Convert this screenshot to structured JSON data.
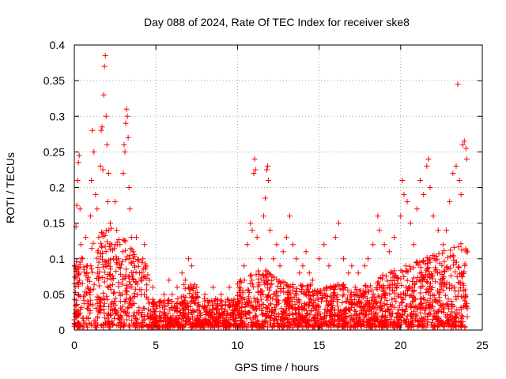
{
  "chart_data": {
    "type": "scatter",
    "title": "Day 088 of 2024, Rate Of TEC Index for receiver ske8",
    "xlabel": "GPS time / hours",
    "ylabel": "ROTI / TECUs",
    "xlim": [
      0,
      25
    ],
    "ylim": [
      0,
      0.4
    ],
    "x_ticks": [
      0,
      5,
      10,
      15,
      20,
      25
    ],
    "y_ticks": [
      0,
      0.05,
      0.1,
      0.15,
      0.2,
      0.25,
      0.3,
      0.35,
      0.4
    ],
    "x_tick_labels": [
      "0",
      "5",
      "10",
      "15",
      "20",
      "25"
    ],
    "y_tick_labels": [
      "0",
      "0.05",
      "0.1",
      "0.15",
      "0.2",
      "0.25",
      "0.3",
      "0.35",
      "0.4"
    ],
    "grid": true,
    "marker": "+",
    "marker_color": "#ff0000",
    "series": [
      {
        "name": "ROTI",
        "points": [
          [
            0.1,
            0.145
          ],
          [
            0.15,
            0.175
          ],
          [
            0.2,
            0.21
          ],
          [
            0.25,
            0.235
          ],
          [
            0.3,
            0.245
          ],
          [
            0.35,
            0.17
          ],
          [
            0.4,
            0.12
          ],
          [
            0.5,
            0.1
          ],
          [
            0.6,
            0.085
          ],
          [
            0.7,
            0.13
          ],
          [
            0.8,
            0.09
          ],
          [
            1.0,
            0.16
          ],
          [
            1.05,
            0.21
          ],
          [
            1.1,
            0.28
          ],
          [
            1.2,
            0.25
          ],
          [
            1.3,
            0.19
          ],
          [
            1.4,
            0.17
          ],
          [
            1.5,
            0.13
          ],
          [
            1.6,
            0.23
          ],
          [
            1.65,
            0.28
          ],
          [
            1.7,
            0.285
          ],
          [
            1.75,
            0.225
          ],
          [
            1.8,
            0.33
          ],
          [
            1.85,
            0.37
          ],
          [
            1.9,
            0.385
          ],
          [
            1.95,
            0.3
          ],
          [
            2.0,
            0.26
          ],
          [
            2.05,
            0.18
          ],
          [
            2.1,
            0.22
          ],
          [
            2.2,
            0.15
          ],
          [
            2.3,
            0.12
          ],
          [
            2.4,
            0.1
          ],
          [
            2.5,
            0.18
          ],
          [
            2.6,
            0.14
          ],
          [
            2.7,
            0.1
          ],
          [
            2.8,
            0.12
          ],
          [
            3.0,
            0.22
          ],
          [
            3.05,
            0.26
          ],
          [
            3.1,
            0.25
          ],
          [
            3.15,
            0.29
          ],
          [
            3.2,
            0.31
          ],
          [
            3.25,
            0.3
          ],
          [
            3.3,
            0.27
          ],
          [
            3.35,
            0.2
          ],
          [
            3.4,
            0.17
          ],
          [
            3.5,
            0.13
          ],
          [
            3.6,
            0.11
          ],
          [
            3.7,
            0.09
          ],
          [
            3.8,
            0.13
          ],
          [
            4.0,
            0.08
          ],
          [
            4.2,
            0.1
          ],
          [
            4.3,
            0.12
          ],
          [
            4.4,
            0.09
          ],
          [
            4.6,
            0.07
          ],
          [
            4.8,
            0.06
          ],
          [
            5.2,
            0.04
          ],
          [
            5.5,
            0.05
          ],
          [
            5.8,
            0.07
          ],
          [
            6.0,
            0.05
          ],
          [
            6.3,
            0.06
          ],
          [
            6.6,
            0.08
          ],
          [
            6.8,
            0.07
          ],
          [
            7.0,
            0.1
          ],
          [
            7.2,
            0.09
          ],
          [
            7.5,
            0.06
          ],
          [
            8.0,
            0.05
          ],
          [
            8.5,
            0.06
          ],
          [
            9.0,
            0.05
          ],
          [
            9.5,
            0.06
          ],
          [
            10.4,
            0.09
          ],
          [
            10.6,
            0.12
          ],
          [
            10.8,
            0.15
          ],
          [
            10.9,
            0.14
          ],
          [
            11.0,
            0.22
          ],
          [
            11.05,
            0.24
          ],
          [
            11.1,
            0.225
          ],
          [
            11.2,
            0.13
          ],
          [
            11.4,
            0.1
          ],
          [
            11.6,
            0.16
          ],
          [
            11.7,
            0.185
          ],
          [
            11.8,
            0.225
          ],
          [
            11.85,
            0.23
          ],
          [
            11.9,
            0.21
          ],
          [
            12.0,
            0.14
          ],
          [
            12.2,
            0.1
          ],
          [
            12.4,
            0.12
          ],
          [
            12.6,
            0.09
          ],
          [
            12.8,
            0.11
          ],
          [
            13.0,
            0.13
          ],
          [
            13.2,
            0.16
          ],
          [
            13.4,
            0.12
          ],
          [
            13.6,
            0.1
          ],
          [
            13.8,
            0.08
          ],
          [
            14.0,
            0.09
          ],
          [
            14.2,
            0.11
          ],
          [
            14.4,
            0.08
          ],
          [
            14.6,
            0.07
          ],
          [
            15.0,
            0.1
          ],
          [
            15.3,
            0.12
          ],
          [
            15.6,
            0.09
          ],
          [
            16.0,
            0.13
          ],
          [
            16.2,
            0.15
          ],
          [
            16.5,
            0.1
          ],
          [
            16.8,
            0.08
          ],
          [
            17.0,
            0.09
          ],
          [
            17.4,
            0.08
          ],
          [
            17.8,
            0.09
          ],
          [
            18.0,
            0.1
          ],
          [
            18.3,
            0.12
          ],
          [
            18.6,
            0.16
          ],
          [
            18.7,
            0.14
          ],
          [
            19.0,
            0.12
          ],
          [
            19.3,
            0.11
          ],
          [
            19.6,
            0.13
          ],
          [
            20.0,
            0.16
          ],
          [
            20.1,
            0.21
          ],
          [
            20.2,
            0.19
          ],
          [
            20.4,
            0.18
          ],
          [
            20.6,
            0.15
          ],
          [
            20.8,
            0.12
          ],
          [
            21.0,
            0.17
          ],
          [
            21.2,
            0.21
          ],
          [
            21.4,
            0.19
          ],
          [
            21.6,
            0.23
          ],
          [
            21.7,
            0.24
          ],
          [
            21.8,
            0.2
          ],
          [
            22.0,
            0.16
          ],
          [
            22.3,
            0.14
          ],
          [
            22.6,
            0.12
          ],
          [
            22.8,
            0.14
          ],
          [
            23.0,
            0.18
          ],
          [
            23.2,
            0.22
          ],
          [
            23.4,
            0.23
          ],
          [
            23.5,
            0.345
          ],
          [
            23.6,
            0.21
          ],
          [
            23.7,
            0.19
          ],
          [
            23.8,
            0.26
          ],
          [
            23.9,
            0.265
          ],
          [
            24.0,
            0.255
          ],
          [
            24.05,
            0.24
          ]
        ]
      }
    ]
  }
}
